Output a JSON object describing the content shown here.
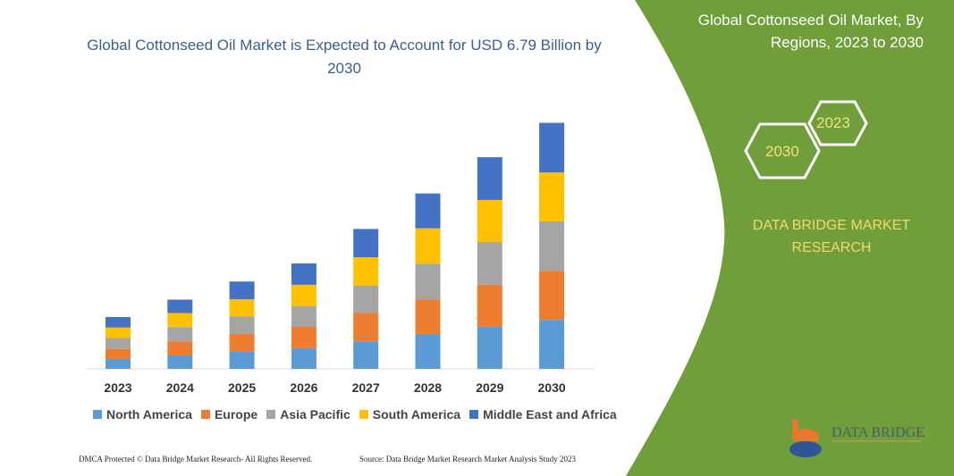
{
  "title": "Global Cottonseed Oil Market is Expected to Account for USD 6.79 Billion by 2030",
  "side_panel": {
    "title": "Global Cottonseed Oil Market, By Regions, 2023 to 2030",
    "hex_start": "2023",
    "hex_end": "2030",
    "brand": "DATA BRIDGE MARKET RESEARCH",
    "logo_text": "DATA BRIDGE",
    "color": "#6f9e3a"
  },
  "footer": {
    "left": "DMCA Protected © Data Bridge Market Research- All Rights Reserved.",
    "right": "Source: Data Bridge Market Research Market Analysis Study 2023"
  },
  "chart_data": {
    "type": "bar",
    "stacked": true,
    "categories": [
      "2023",
      "2024",
      "2025",
      "2026",
      "2027",
      "2028",
      "2029",
      "2030"
    ],
    "series": [
      {
        "name": "North America",
        "color": "#5b9bd5",
        "values": [
          0.27,
          0.37,
          0.47,
          0.57,
          0.76,
          0.96,
          1.16,
          1.35
        ]
      },
      {
        "name": "Europe",
        "color": "#ed7d31",
        "values": [
          0.29,
          0.39,
          0.49,
          0.59,
          0.78,
          0.96,
          1.16,
          1.35
        ]
      },
      {
        "name": "Asia Pacific",
        "color": "#a5a5a5",
        "values": [
          0.29,
          0.39,
          0.49,
          0.57,
          0.76,
          0.98,
          1.18,
          1.37
        ]
      },
      {
        "name": "South America",
        "color": "#ffc000",
        "values": [
          0.29,
          0.39,
          0.47,
          0.59,
          0.78,
          0.98,
          1.16,
          1.35
        ]
      },
      {
        "name": "Middle East and Africa",
        "color": "#4472c4",
        "values": [
          0.29,
          0.37,
          0.49,
          0.59,
          0.78,
          0.96,
          1.18,
          1.37
        ]
      }
    ],
    "xlabel": "",
    "ylabel": "",
    "ylim": [
      0,
      7
    ],
    "grid": false,
    "legend": "bottom"
  }
}
